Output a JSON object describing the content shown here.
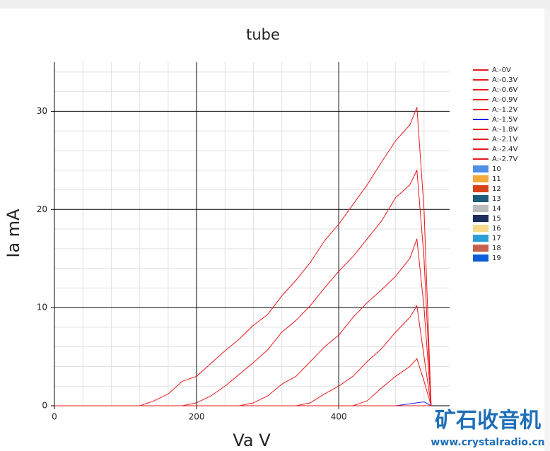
{
  "chart_data": {
    "type": "line",
    "title": "tube",
    "x_label": "Va V",
    "y_label": "Ia mA",
    "watermark": [
      "矿石收音机",
      "www.crystalradio.cn"
    ],
    "xlim": [
      0,
      556
    ],
    "ylim": [
      0,
      35
    ],
    "xticks": [
      0,
      200,
      400
    ],
    "yticks": [
      0,
      10,
      20,
      30
    ],
    "xminorticks": [
      40,
      80,
      120,
      160,
      240,
      280,
      320,
      360,
      440,
      480,
      520
    ],
    "yminorticks": [
      2,
      4,
      6,
      8,
      12,
      14,
      16,
      18,
      22,
      24,
      26,
      28,
      32,
      34
    ],
    "grid": true,
    "x": [
      0,
      20,
      40,
      60,
      80,
      100,
      120,
      140,
      160,
      180,
      200,
      220,
      240,
      260,
      280,
      300,
      320,
      340,
      360,
      380,
      400,
      420,
      440,
      460,
      480,
      500,
      510,
      520,
      530
    ],
    "series": [
      {
        "name": "A:-0V",
        "color": "#e8191c",
        "values": [
          0,
          0,
          0,
          0,
          0,
          0,
          0,
          0.5,
          1.2,
          2.5,
          3.0,
          4.3,
          5.6,
          6.8,
          8.2,
          9.3,
          11.2,
          12.8,
          14.6,
          16.8,
          18.5,
          20.5,
          22.5,
          24.8,
          27.0,
          28.6,
          30.4,
          20,
          0
        ]
      },
      {
        "name": "A:-0.3V",
        "color": "#e8191c",
        "values": [
          0,
          0,
          0,
          0,
          0,
          0,
          0,
          0,
          0,
          0,
          0.3,
          1.0,
          2.0,
          3.2,
          4.4,
          5.7,
          7.5,
          8.7,
          10.2,
          12.0,
          13.7,
          15.2,
          17.0,
          18.8,
          21.2,
          22.5,
          24,
          15,
          0
        ]
      },
      {
        "name": "A:-0.6V",
        "color": "#e8191c",
        "values": [
          0,
          0,
          0,
          0,
          0,
          0,
          0,
          0,
          0,
          0,
          0,
          0,
          0,
          0,
          0.3,
          1.0,
          2.2,
          3.0,
          4.5,
          6.0,
          7.2,
          9.0,
          10.5,
          11.8,
          13.2,
          15.0,
          17,
          10,
          0
        ]
      },
      {
        "name": "A:-0.9V",
        "color": "#e8191c",
        "values": [
          0,
          0,
          0,
          0,
          0,
          0,
          0,
          0,
          0,
          0,
          0,
          0,
          0,
          0,
          0,
          0,
          0,
          0,
          0.3,
          1.2,
          2.0,
          3.0,
          4.5,
          5.8,
          7.5,
          9.0,
          10.2,
          5,
          0
        ]
      },
      {
        "name": "A:-1.2V",
        "color": "#e8191c",
        "values": [
          0,
          0,
          0,
          0,
          0,
          0,
          0,
          0,
          0,
          0,
          0,
          0,
          0,
          0,
          0,
          0,
          0,
          0,
          0,
          0,
          0,
          0,
          0.5,
          1.8,
          3.0,
          4.0,
          4.8,
          2.5,
          0
        ]
      },
      {
        "name": "A:-1.5V",
        "color": "#1c1ce8",
        "values": [
          0,
          0,
          0,
          0,
          0,
          0,
          0,
          0,
          0,
          0,
          0,
          0,
          0,
          0,
          0,
          0,
          0,
          0,
          0,
          0,
          0,
          0,
          0,
          0,
          0,
          0.2,
          0.3,
          0.4,
          0
        ]
      },
      {
        "name": "A:-1.8V",
        "color": "#e8191c",
        "values": [
          0,
          0,
          0,
          0,
          0,
          0,
          0,
          0,
          0,
          0,
          0,
          0,
          0,
          0,
          0,
          0,
          0,
          0,
          0,
          0,
          0,
          0,
          0,
          0,
          0,
          0,
          0,
          0,
          0
        ]
      },
      {
        "name": "A:-2.1V",
        "color": "#e8191c",
        "values": [
          0,
          0,
          0,
          0,
          0,
          0,
          0,
          0,
          0,
          0,
          0,
          0,
          0,
          0,
          0,
          0,
          0,
          0,
          0,
          0,
          0,
          0,
          0,
          0,
          0,
          0,
          0,
          0,
          0
        ]
      },
      {
        "name": "A:-2.4V",
        "color": "#e8191c",
        "values": [
          0,
          0,
          0,
          0,
          0,
          0,
          0,
          0,
          0,
          0,
          0,
          0,
          0,
          0,
          0,
          0,
          0,
          0,
          0,
          0,
          0,
          0,
          0,
          0,
          0,
          0,
          0,
          0,
          0
        ]
      },
      {
        "name": "A:-2.7V",
        "color": "#e8191c",
        "values": [
          0,
          0,
          0,
          0,
          0,
          0,
          0,
          0,
          0,
          0,
          0,
          0,
          0,
          0,
          0,
          0,
          0,
          0,
          0,
          0,
          0,
          0,
          0,
          0,
          0,
          0,
          0,
          0,
          0
        ]
      },
      {
        "name": "10",
        "color": "#4f8fe6"
      },
      {
        "name": "11",
        "color": "#f5a93b"
      },
      {
        "name": "12",
        "color": "#d9431a"
      },
      {
        "name": "13",
        "color": "#1d5e7e"
      },
      {
        "name": "14",
        "color": "#bcbcbc"
      },
      {
        "name": "15",
        "color": "#1c2e5c"
      },
      {
        "name": "16",
        "color": "#f7d98a"
      },
      {
        "name": "17",
        "color": "#2a9fd6"
      },
      {
        "name": "18",
        "color": "#c8604e"
      },
      {
        "name": "19",
        "color": "#0a5ed6"
      }
    ]
  }
}
